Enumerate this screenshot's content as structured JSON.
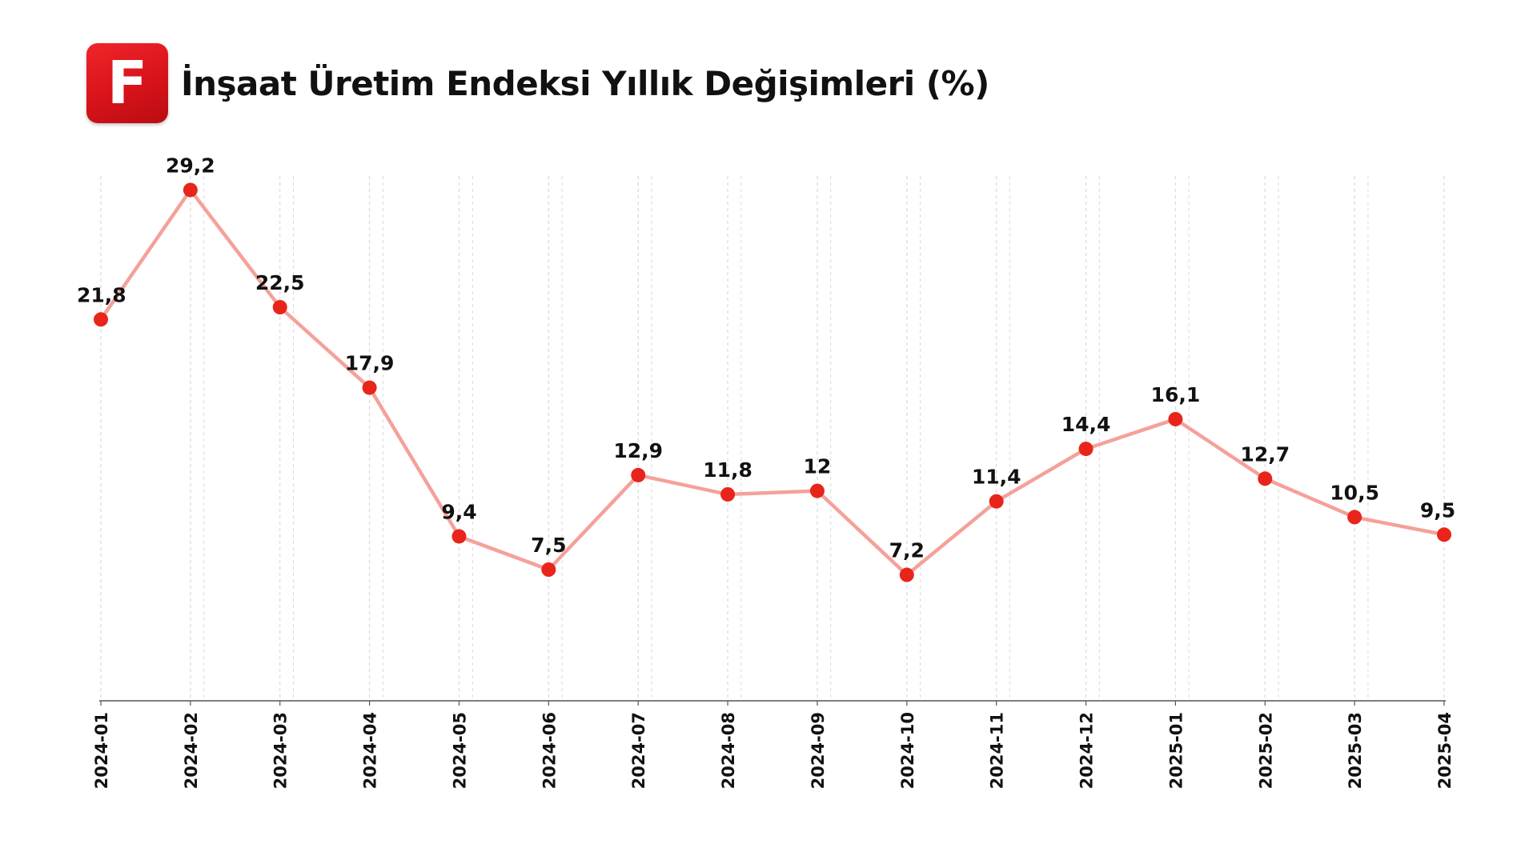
{
  "header": {
    "logo_letter": "F",
    "title": "İnşaat Üretim Endeksi Yıllık Değişimleri (%)"
  },
  "colors": {
    "line": "#f4a19a",
    "marker": "#e8251b",
    "logo": "#e01b20",
    "grid": "#d9d9d9",
    "axis": "#555555",
    "text": "#111111"
  },
  "chart_data": {
    "type": "line",
    "title": "İnşaat Üretim Endeksi Yıllık Değişimleri (%)",
    "xlabel": "",
    "ylabel": "",
    "categories": [
      "2024-01",
      "2024-02",
      "2024-03",
      "2024-04",
      "2024-05",
      "2024-06",
      "2024-07",
      "2024-08",
      "2024-09",
      "2024-10",
      "2024-11",
      "2024-12",
      "2025-01",
      "2025-02",
      "2025-03",
      "2025-04"
    ],
    "values": [
      21.8,
      29.2,
      22.5,
      17.9,
      9.4,
      7.5,
      12.9,
      11.8,
      12,
      7.2,
      11.4,
      14.4,
      16.1,
      12.7,
      10.5,
      9.5
    ],
    "data_labels": [
      "21,8",
      "29,2",
      "22,5",
      "17,9",
      "9,4",
      "7,5",
      "12,9",
      "11,8",
      "12",
      "7,2",
      "11,4",
      "14,4",
      "16,1",
      "12,7",
      "10,5",
      "9,5"
    ],
    "ylim": [
      0,
      30
    ],
    "grid": "vertical dashed",
    "legend": "none"
  }
}
